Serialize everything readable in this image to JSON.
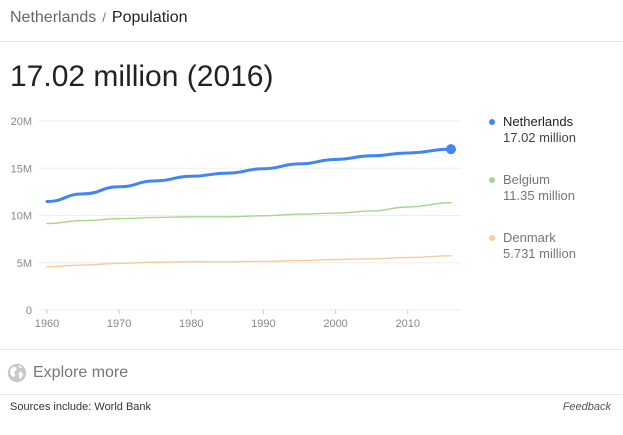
{
  "breadcrumb": {
    "root": "Netherlands",
    "separator": "/",
    "current": "Population"
  },
  "headline": "17.02 million (2016)",
  "colors": {
    "netherlands": "#4285f4",
    "belgium": "#a8d58b",
    "denmark": "#f6cd95",
    "grid": "#eeeeee",
    "axis_text": "#888888"
  },
  "legend": [
    {
      "name": "Netherlands",
      "value": "17.02 million",
      "color": "#4285f4"
    },
    {
      "name": "Belgium",
      "value": "11.35 million",
      "color": "#a8d58b"
    },
    {
      "name": "Denmark",
      "value": "5.731 million",
      "color": "#f6cd95"
    }
  ],
  "chart_data": {
    "type": "line",
    "xlim": [
      1960,
      2016
    ],
    "ylim": [
      0,
      20000000
    ],
    "x_ticks": [
      1960,
      1970,
      1980,
      1990,
      2000,
      2010
    ],
    "y_ticks": [
      {
        "value": 0,
        "label": "0"
      },
      {
        "value": 5000000,
        "label": "5M"
      },
      {
        "value": 10000000,
        "label": "10M"
      },
      {
        "value": 15000000,
        "label": "15M"
      },
      {
        "value": 20000000,
        "label": "20M"
      }
    ],
    "grid": true,
    "x": [
      1960,
      1965,
      1970,
      1975,
      1980,
      1985,
      1990,
      1995,
      2000,
      2005,
      2010,
      2016
    ],
    "series": [
      {
        "name": "Netherlands",
        "color": "#4285f4",
        "values": [
          11480000,
          12290000,
          13040000,
          13660000,
          14150000,
          14490000,
          14950000,
          15460000,
          15930000,
          16320000,
          16620000,
          17020000
        ]
      },
      {
        "name": "Belgium",
        "color": "#a8d58b",
        "values": [
          9150000,
          9460000,
          9660000,
          9800000,
          9860000,
          9860000,
          9970000,
          10140000,
          10250000,
          10480000,
          10900000,
          11350000
        ]
      },
      {
        "name": "Denmark",
        "color": "#f6cd95",
        "values": [
          4580000,
          4760000,
          4930000,
          5060000,
          5120000,
          5110000,
          5140000,
          5230000,
          5340000,
          5420000,
          5550000,
          5731000
        ]
      }
    ]
  },
  "explore": {
    "label": "Explore more",
    "icon": "globe-icon"
  },
  "footer": {
    "sources": "Sources include: World Bank",
    "feedback": "Feedback"
  }
}
